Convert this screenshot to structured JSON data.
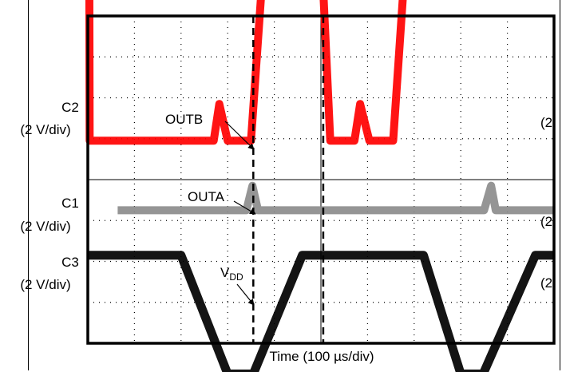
{
  "chart_data": {
    "type": "line",
    "title": "",
    "xlabel": "Time (100 µs/div)",
    "x_unit": "µs",
    "xlim": [
      0,
      1000
    ],
    "grid": true,
    "divisions": {
      "x": 10,
      "y": 8
    },
    "channels": [
      {
        "id": "C2",
        "scale": "(2 V/div)",
        "color": "#ff0000"
      },
      {
        "id": "C1",
        "scale": "(2 V/div)",
        "color": "#8c8c8c"
      },
      {
        "id": "C3",
        "scale": "(2 V/div)",
        "color": "#000000"
      }
    ],
    "annotations": [
      {
        "text": "OUTB",
        "series": "OUTB"
      },
      {
        "text": "OUTA",
        "series": "OUTA"
      },
      {
        "text": "V",
        "sub": "DD",
        "series": "VDD"
      }
    ],
    "right_edge_labels": [
      "(2",
      "(2",
      "(2"
    ],
    "series": [
      {
        "name": "OUTB",
        "channel": "C2",
        "unit": "div",
        "color": "#ff0000",
        "x": [
          0,
          3,
          4,
          270,
          282,
          300,
          350,
          380,
          500,
          520,
          572,
          584,
          604,
          655,
          684,
          1000
        ],
        "y": [
          5.85,
          5.85,
          0.95,
          0.95,
          1.85,
          0.95,
          0.95,
          5.85,
          5.85,
          0.95,
          0.95,
          1.85,
          0.95,
          0.95,
          5.85,
          5.85
        ]
      },
      {
        "name": "OUTA",
        "channel": "C1",
        "unit": "div",
        "color": "#8c8c8c",
        "x": [
          64,
          340,
          353,
          365,
          400,
          850,
          865,
          875,
          1000
        ],
        "y": [
          -0.75,
          -0.75,
          -0.15,
          -0.75,
          -0.75,
          -0.75,
          -0.15,
          -0.75,
          -0.75
        ]
      },
      {
        "name": "VDD",
        "channel": "C3",
        "unit": "div",
        "color": "#000000",
        "x": [
          0,
          200,
          300,
          355,
          460,
          720,
          800,
          848,
          960,
          1000
        ],
        "y": [
          -1.85,
          -1.85,
          -4.75,
          -4.75,
          -1.85,
          -1.85,
          -4.75,
          -4.75,
          -1.85,
          -1.85
        ]
      }
    ],
    "markers": {
      "dashed_cursor_x": [
        355,
        505
      ]
    }
  }
}
